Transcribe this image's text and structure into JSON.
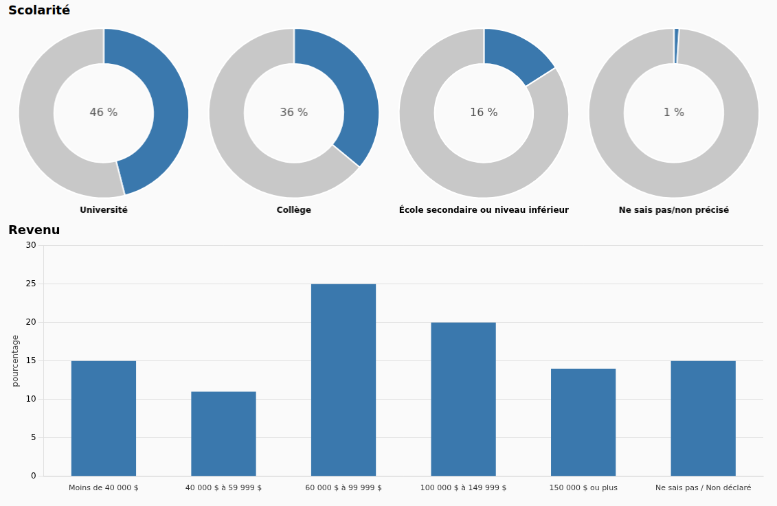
{
  "title": "Scolarité",
  "chart_data": [
    {
      "type": "doughnut",
      "title": "Université",
      "values": [
        46,
        54
      ],
      "colors": [
        "#3A78AD",
        "#C8C8C8"
      ],
      "annotation": "46 %"
    },
    {
      "type": "doughnut",
      "title": "Collège",
      "values": [
        36,
        64
      ],
      "colors": [
        "#3A78AD",
        "#C8C8C8"
      ],
      "annotation": "36 %"
    },
    {
      "type": "doughnut",
      "title": "École secondaire ou niveau inférieur",
      "values": [
        16,
        84
      ],
      "colors": [
        "#3A78AD",
        "#C8C8C8"
      ],
      "annotation": "16 %"
    },
    {
      "type": "doughnut",
      "title": "Ne sais pas/non précisé",
      "values": [
        1,
        99
      ],
      "colors": [
        "#3A78AD",
        "#C8C8C8"
      ],
      "annotation": "1 %"
    },
    {
      "type": "bar",
      "title": "Revenu",
      "ylabel": "pourcentage",
      "categories": [
        "Moins de 40 000 $",
        "40 000 $ à 59 999 $",
        "60 000 $ à 99 999 $",
        "100 000 $ à 149 999 $",
        "150 000 $ ou plus",
        "Ne sais pas / Non déclaré"
      ],
      "values": [
        15,
        11,
        25,
        20,
        14,
        15
      ],
      "color": "#3A78AD",
      "ylim": [
        0,
        30
      ],
      "yticks": [
        0,
        5,
        10,
        15,
        20,
        25,
        30
      ],
      "grid": true
    }
  ]
}
